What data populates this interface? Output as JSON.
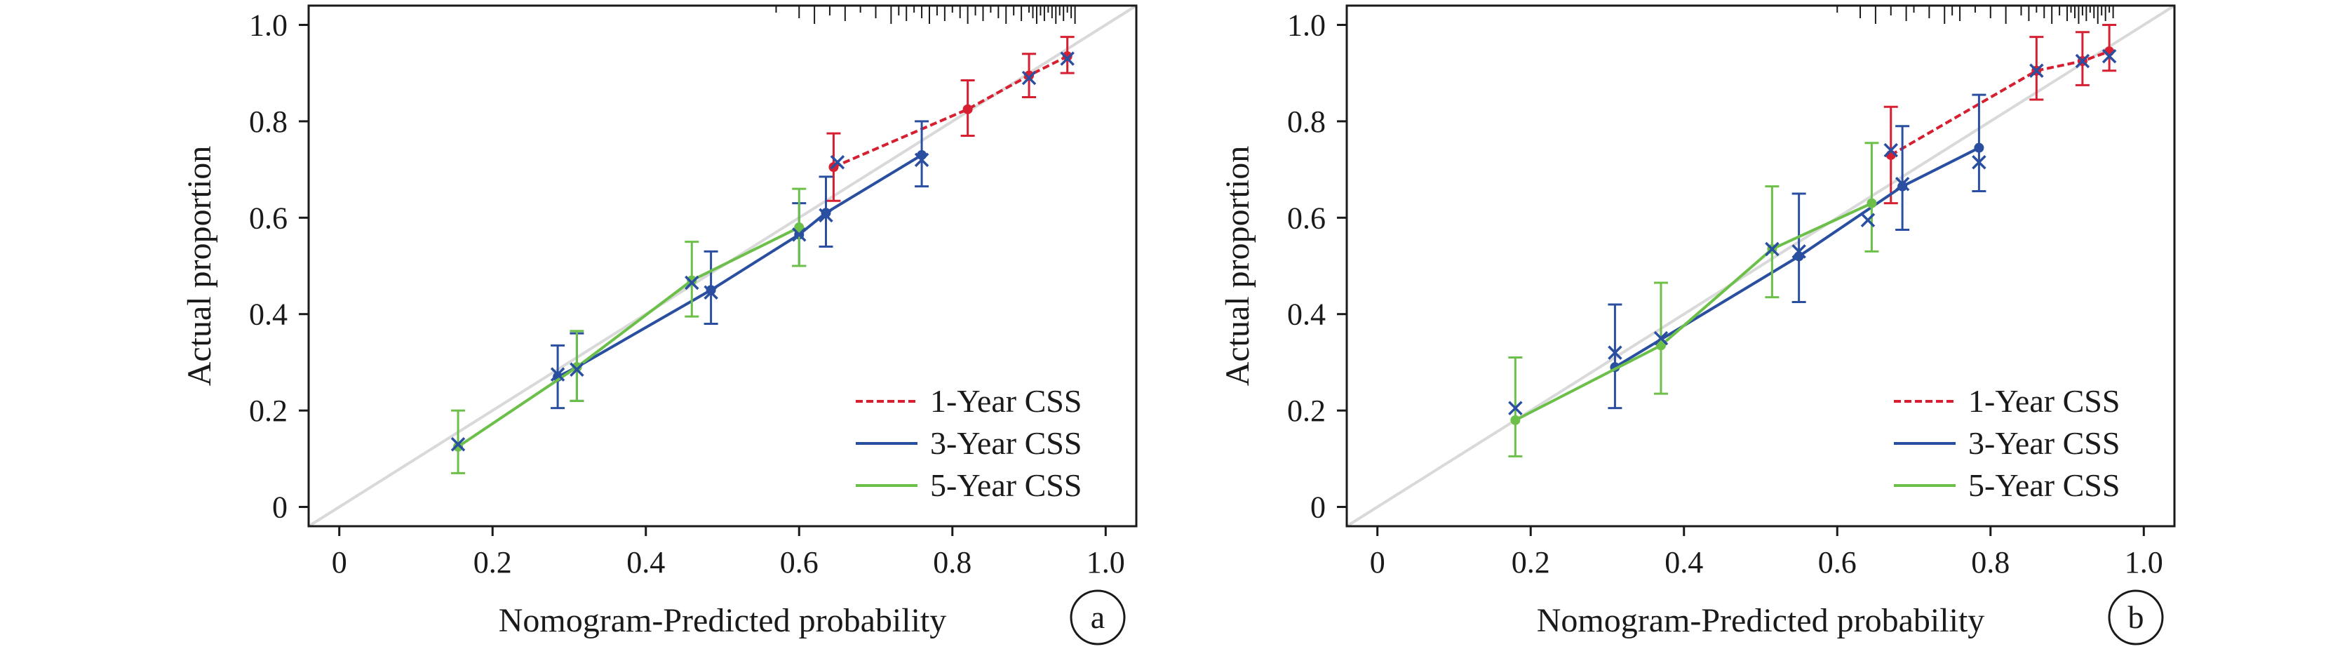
{
  "chart_data": [
    {
      "type": "calibration",
      "panel_label": "a",
      "xlabel": "Nomogram-Predicted probability",
      "ylabel": "Actual proportion",
      "xlim": [
        -0.04,
        1.04
      ],
      "ylim": [
        -0.04,
        1.04
      ],
      "xticks": [
        0,
        0.2,
        0.4,
        0.6,
        0.8,
        1.0
      ],
      "xtick_labels": [
        "0",
        "0.2",
        "0.4",
        "0.6",
        "0.8",
        "1.0"
      ],
      "yticks": [
        0,
        0.2,
        0.4,
        0.6,
        0.8,
        1.0
      ],
      "ytick_labels": [
        "0",
        "0.2",
        "0.4",
        "0.6",
        "0.8",
        "1.0"
      ],
      "legend_position": "bottom-right",
      "rug": [
        0.57,
        0.6,
        0.62,
        0.64,
        0.66,
        0.68,
        0.7,
        0.72,
        0.73,
        0.74,
        0.75,
        0.76,
        0.77,
        0.78,
        0.79,
        0.8,
        0.81,
        0.82,
        0.83,
        0.84,
        0.85,
        0.86,
        0.87,
        0.88,
        0.89,
        0.9,
        0.905,
        0.91,
        0.915,
        0.92,
        0.925,
        0.93,
        0.935,
        0.94,
        0.945,
        0.95,
        0.955,
        0.96
      ],
      "series": [
        {
          "name": "1-Year CSS",
          "color": "#d62031",
          "dash": true,
          "points": [
            {
              "x": 0.645,
              "y": 0.705,
              "lo": 0.635,
              "hi": 0.775
            },
            {
              "x": 0.82,
              "y": 0.825,
              "lo": 0.77,
              "hi": 0.885
            },
            {
              "x": 0.9,
              "y": 0.895,
              "lo": 0.85,
              "hi": 0.94
            },
            {
              "x": 0.95,
              "y": 0.935,
              "lo": 0.9,
              "hi": 0.975
            }
          ]
        },
        {
          "name": "3-Year CSS",
          "color": "#2a4fa1",
          "dash": false,
          "points": [
            {
              "x": 0.285,
              "y": 0.27,
              "lo": 0.205,
              "hi": 0.335
            },
            {
              "x": 0.31,
              "y": 0.29,
              "lo": 0.22,
              "hi": 0.36
            },
            {
              "x": 0.485,
              "y": 0.45,
              "lo": 0.38,
              "hi": 0.53
            },
            {
              "x": 0.6,
              "y": 0.565,
              "lo": 0.5,
              "hi": 0.63
            },
            {
              "x": 0.635,
              "y": 0.61,
              "lo": 0.54,
              "hi": 0.685
            },
            {
              "x": 0.76,
              "y": 0.73,
              "lo": 0.665,
              "hi": 0.8
            }
          ]
        },
        {
          "name": "5-Year CSS",
          "color": "#6cc04a",
          "dash": false,
          "points": [
            {
              "x": 0.155,
              "y": 0.125,
              "lo": 0.07,
              "hi": 0.2
            },
            {
              "x": 0.31,
              "y": 0.29,
              "lo": 0.22,
              "hi": 0.365
            },
            {
              "x": 0.46,
              "y": 0.47,
              "lo": 0.395,
              "hi": 0.55
            },
            {
              "x": 0.6,
              "y": 0.58,
              "lo": 0.5,
              "hi": 0.66
            }
          ]
        }
      ],
      "x_markers": [
        {
          "x": 0.155,
          "y": 0.13
        },
        {
          "x": 0.285,
          "y": 0.275
        },
        {
          "x": 0.31,
          "y": 0.285
        },
        {
          "x": 0.46,
          "y": 0.465
        },
        {
          "x": 0.485,
          "y": 0.445
        },
        {
          "x": 0.6,
          "y": 0.565
        },
        {
          "x": 0.635,
          "y": 0.605
        },
        {
          "x": 0.65,
          "y": 0.715
        },
        {
          "x": 0.76,
          "y": 0.72
        },
        {
          "x": 0.9,
          "y": 0.89
        },
        {
          "x": 0.95,
          "y": 0.93
        }
      ]
    },
    {
      "type": "calibration",
      "panel_label": "b",
      "xlabel": "Nomogram-Predicted probability",
      "ylabel": "Actual proportion",
      "xlim": [
        -0.04,
        1.04
      ],
      "ylim": [
        -0.04,
        1.04
      ],
      "xticks": [
        0,
        0.2,
        0.4,
        0.6,
        0.8,
        1.0
      ],
      "xtick_labels": [
        "0",
        "0.2",
        "0.4",
        "0.6",
        "0.8",
        "1.0"
      ],
      "yticks": [
        0,
        0.2,
        0.4,
        0.6,
        0.8,
        1.0
      ],
      "ytick_labels": [
        "0",
        "0.2",
        "0.4",
        "0.6",
        "0.8",
        "1.0"
      ],
      "legend_position": "bottom-right",
      "rug": [
        0.6,
        0.63,
        0.65,
        0.67,
        0.69,
        0.7,
        0.72,
        0.74,
        0.75,
        0.76,
        0.78,
        0.8,
        0.82,
        0.84,
        0.85,
        0.86,
        0.87,
        0.88,
        0.89,
        0.9,
        0.905,
        0.91,
        0.915,
        0.92,
        0.925,
        0.93,
        0.935,
        0.94,
        0.945,
        0.95,
        0.955,
        0.96
      ],
      "series": [
        {
          "name": "1-Year CSS",
          "color": "#d62031",
          "dash": true,
          "points": [
            {
              "x": 0.67,
              "y": 0.73,
              "lo": 0.63,
              "hi": 0.83
            },
            {
              "x": 0.86,
              "y": 0.905,
              "lo": 0.845,
              "hi": 0.975
            },
            {
              "x": 0.92,
              "y": 0.925,
              "lo": 0.875,
              "hi": 0.985
            },
            {
              "x": 0.955,
              "y": 0.945,
              "lo": 0.905,
              "hi": 1.0
            }
          ]
        },
        {
          "name": "3-Year CSS",
          "color": "#2a4fa1",
          "dash": false,
          "points": [
            {
              "x": 0.31,
              "y": 0.29,
              "lo": 0.205,
              "hi": 0.42
            },
            {
              "x": 0.55,
              "y": 0.52,
              "lo": 0.425,
              "hi": 0.65
            },
            {
              "x": 0.685,
              "y": 0.665,
              "lo": 0.575,
              "hi": 0.79
            },
            {
              "x": 0.785,
              "y": 0.745,
              "lo": 0.655,
              "hi": 0.855
            }
          ]
        },
        {
          "name": "5-Year CSS",
          "color": "#6cc04a",
          "dash": false,
          "points": [
            {
              "x": 0.18,
              "y": 0.18,
              "lo": 0.105,
              "hi": 0.31
            },
            {
              "x": 0.37,
              "y": 0.335,
              "lo": 0.235,
              "hi": 0.465
            },
            {
              "x": 0.515,
              "y": 0.535,
              "lo": 0.435,
              "hi": 0.665
            },
            {
              "x": 0.645,
              "y": 0.63,
              "lo": 0.53,
              "hi": 0.755
            }
          ]
        }
      ],
      "x_markers": [
        {
          "x": 0.18,
          "y": 0.205
        },
        {
          "x": 0.31,
          "y": 0.32
        },
        {
          "x": 0.37,
          "y": 0.35
        },
        {
          "x": 0.515,
          "y": 0.535
        },
        {
          "x": 0.55,
          "y": 0.53
        },
        {
          "x": 0.64,
          "y": 0.595
        },
        {
          "x": 0.67,
          "y": 0.74
        },
        {
          "x": 0.685,
          "y": 0.67
        },
        {
          "x": 0.785,
          "y": 0.715
        },
        {
          "x": 0.86,
          "y": 0.905
        },
        {
          "x": 0.92,
          "y": 0.925
        },
        {
          "x": 0.955,
          "y": 0.935
        }
      ]
    }
  ]
}
